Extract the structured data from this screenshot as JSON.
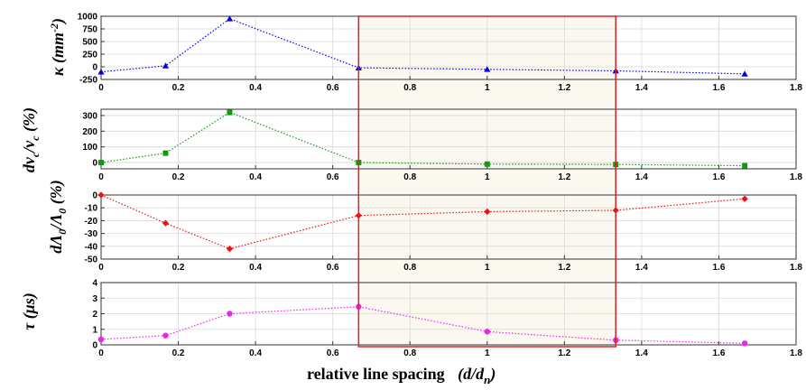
{
  "chart_data": {
    "type": "line",
    "xlabel": "relative line spacing",
    "xlabel_symbol": "(d/d",
    "xlabel_sub": "n",
    "xlabel_close": ")",
    "xlim": [
      0,
      1.8
    ],
    "xticks": [
      "0",
      "0.2",
      "0.4",
      "0.6",
      "0.8",
      "1",
      "1.2",
      "1.4",
      "1.6",
      "1.8"
    ],
    "xtick_values": [
      0,
      0.2,
      0.4,
      0.6,
      0.8,
      1.0,
      1.2,
      1.4,
      1.6,
      1.8
    ],
    "grid": true,
    "highlight_region": {
      "x_range": [
        0.667,
        1.333
      ],
      "fill": "#fbf8f0",
      "border": "#dd2222"
    },
    "panels": [
      {
        "ylabel": "κ (mm",
        "ylabel_sup": "-2",
        "ylabel_close": ")",
        "ylim": [
          -250,
          1000
        ],
        "yticks": [
          "1000",
          "750",
          "500",
          "250",
          "0",
          "-250"
        ],
        "ytick_values": [
          1000,
          750,
          500,
          250,
          0,
          -250
        ],
        "color": "#0000ee",
        "marker": "triangle",
        "x": [
          0,
          0.167,
          0.333,
          0.667,
          1.0,
          1.333,
          1.667
        ],
        "values": [
          -100,
          20,
          950,
          -20,
          -50,
          -80,
          -140
        ]
      },
      {
        "ylabel": "dν",
        "ylabel_sub1": "c",
        "ylabel_mid": "/ν",
        "ylabel_sub2": "c",
        "ylabel_close": " (%)",
        "ylim": [
          -40,
          340
        ],
        "yticks": [
          "300",
          "200",
          "100",
          "0"
        ],
        "ytick_values": [
          300,
          200,
          100,
          0
        ],
        "color": "#119911",
        "marker": "square",
        "x": [
          0,
          0.167,
          0.333,
          0.667,
          1.0,
          1.333,
          1.667
        ],
        "values": [
          0,
          60,
          320,
          0,
          -10,
          -12,
          -20
        ]
      },
      {
        "ylabel": "dΛ",
        "ylabel_sub1": "0",
        "ylabel_mid": "/Λ",
        "ylabel_sub2": "0",
        "ylabel_close": " (%)",
        "ylim": [
          -50,
          0
        ],
        "yticks": [
          "0",
          "-10",
          "-20",
          "-30",
          "-40",
          "-50"
        ],
        "ytick_values": [
          0,
          -10,
          -20,
          -30,
          -40,
          -50
        ],
        "color": "#ee1111",
        "marker": "diamond",
        "x": [
          0,
          0.167,
          0.333,
          0.667,
          1.0,
          1.333,
          1.667
        ],
        "values": [
          0,
          -22,
          -42,
          -16,
          -13,
          -12,
          -3
        ]
      },
      {
        "ylabel": "τ (μs)",
        "ylim": [
          0,
          4
        ],
        "yticks": [
          "4",
          "3",
          "2",
          "1",
          "0"
        ],
        "ytick_values": [
          4,
          3,
          2,
          1,
          0
        ],
        "color": "#ee22ee",
        "marker": "circle",
        "x": [
          0,
          0.167,
          0.333,
          0.667,
          1.0,
          1.333,
          1.667
        ],
        "values": [
          0.35,
          0.6,
          2.0,
          2.45,
          0.85,
          0.3,
          0.1
        ]
      }
    ]
  }
}
